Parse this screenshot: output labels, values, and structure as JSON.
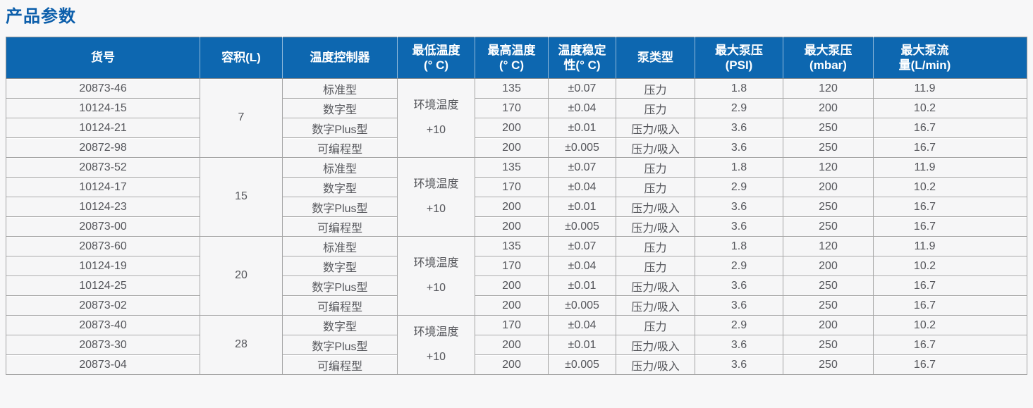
{
  "page_title": "产品参数",
  "colors": {
    "title_text": "#0d5fab",
    "header_bg": "#0d67b0",
    "header_text": "#ffffff",
    "cell_bg": "#f6f6f7",
    "cell_text": "#54555a",
    "grid_line": "#a5a5a5",
    "page_bg": "#f7f7f8"
  },
  "table": {
    "headers": [
      "货号",
      "容积(L)",
      "温度控制器",
      "最低温度\n(° C)",
      "最高温度\n(° C)",
      "温度稳定\n性(° C)",
      "泵类型",
      "最大泵压\n(PSI)",
      "最大泵压\n(mbar)",
      "最大泵流\n量(L/min)"
    ],
    "groups": [
      {
        "volume": "7",
        "min_temp": "环境温度\n+10",
        "rows": [
          {
            "item_no": "20873-46",
            "controller": "标准型",
            "max_temp": "135",
            "stability": "±0.07",
            "pump_type": "压力",
            "max_pump_psi": "1.8",
            "max_pump_mbar": "120",
            "max_flow": "11.9"
          },
          {
            "item_no": "10124-15",
            "controller": "数字型",
            "max_temp": "170",
            "stability": "±0.04",
            "pump_type": "压力",
            "max_pump_psi": "2.9",
            "max_pump_mbar": "200",
            "max_flow": "10.2"
          },
          {
            "item_no": "10124-21",
            "controller": "数字Plus型",
            "max_temp": "200",
            "stability": "±0.01",
            "pump_type": "压力/吸入",
            "max_pump_psi": "3.6",
            "max_pump_mbar": "250",
            "max_flow": "16.7"
          },
          {
            "item_no": "20872-98",
            "controller": "可编程型",
            "max_temp": "200",
            "stability": "±0.005",
            "pump_type": "压力/吸入",
            "max_pump_psi": "3.6",
            "max_pump_mbar": "250",
            "max_flow": "16.7"
          }
        ]
      },
      {
        "volume": "15",
        "min_temp": "环境温度\n+10",
        "rows": [
          {
            "item_no": "20873-52",
            "controller": "标准型",
            "max_temp": "135",
            "stability": "±0.07",
            "pump_type": "压力",
            "max_pump_psi": "1.8",
            "max_pump_mbar": "120",
            "max_flow": "11.9"
          },
          {
            "item_no": "10124-17",
            "controller": "数字型",
            "max_temp": "170",
            "stability": "±0.04",
            "pump_type": "压力",
            "max_pump_psi": "2.9",
            "max_pump_mbar": "200",
            "max_flow": "10.2"
          },
          {
            "item_no": "10124-23",
            "controller": "数字Plus型",
            "max_temp": "200",
            "stability": "±0.01",
            "pump_type": "压力/吸入",
            "max_pump_psi": "3.6",
            "max_pump_mbar": "250",
            "max_flow": "16.7"
          },
          {
            "item_no": "20873-00",
            "controller": "可编程型",
            "max_temp": "200",
            "stability": "±0.005",
            "pump_type": "压力/吸入",
            "max_pump_psi": "3.6",
            "max_pump_mbar": "250",
            "max_flow": "16.7"
          }
        ]
      },
      {
        "volume": "20",
        "min_temp": "环境温度\n+10",
        "rows": [
          {
            "item_no": "20873-60",
            "controller": "标准型",
            "max_temp": "135",
            "stability": "±0.07",
            "pump_type": "压力",
            "max_pump_psi": "1.8",
            "max_pump_mbar": "120",
            "max_flow": "11.9"
          },
          {
            "item_no": "10124-19",
            "controller": "数字型",
            "max_temp": "170",
            "stability": "±0.04",
            "pump_type": "压力",
            "max_pump_psi": "2.9",
            "max_pump_mbar": "200",
            "max_flow": "10.2"
          },
          {
            "item_no": "10124-25",
            "controller": "数字Plus型",
            "max_temp": "200",
            "stability": "±0.01",
            "pump_type": "压力/吸入",
            "max_pump_psi": "3.6",
            "max_pump_mbar": "250",
            "max_flow": "16.7"
          },
          {
            "item_no": "20873-02",
            "controller": "可编程型",
            "max_temp": "200",
            "stability": "±0.005",
            "pump_type": "压力/吸入",
            "max_pump_psi": "3.6",
            "max_pump_mbar": "250",
            "max_flow": "16.7"
          }
        ]
      },
      {
        "volume": "28",
        "min_temp": "环境温度\n+10",
        "rows": [
          {
            "item_no": "20873-40",
            "controller": "数字型",
            "max_temp": "170",
            "stability": "±0.04",
            "pump_type": "压力",
            "max_pump_psi": "2.9",
            "max_pump_mbar": "200",
            "max_flow": "10.2"
          },
          {
            "item_no": "20873-30",
            "controller": "数字Plus型",
            "max_temp": "200",
            "stability": "±0.01",
            "pump_type": "压力/吸入",
            "max_pump_psi": "3.6",
            "max_pump_mbar": "250",
            "max_flow": "16.7"
          },
          {
            "item_no": "20873-04",
            "controller": "可编程型",
            "max_temp": "200",
            "stability": "±0.005",
            "pump_type": "压力/吸入",
            "max_pump_psi": "3.6",
            "max_pump_mbar": "250",
            "max_flow": "16.7"
          }
        ]
      }
    ]
  }
}
